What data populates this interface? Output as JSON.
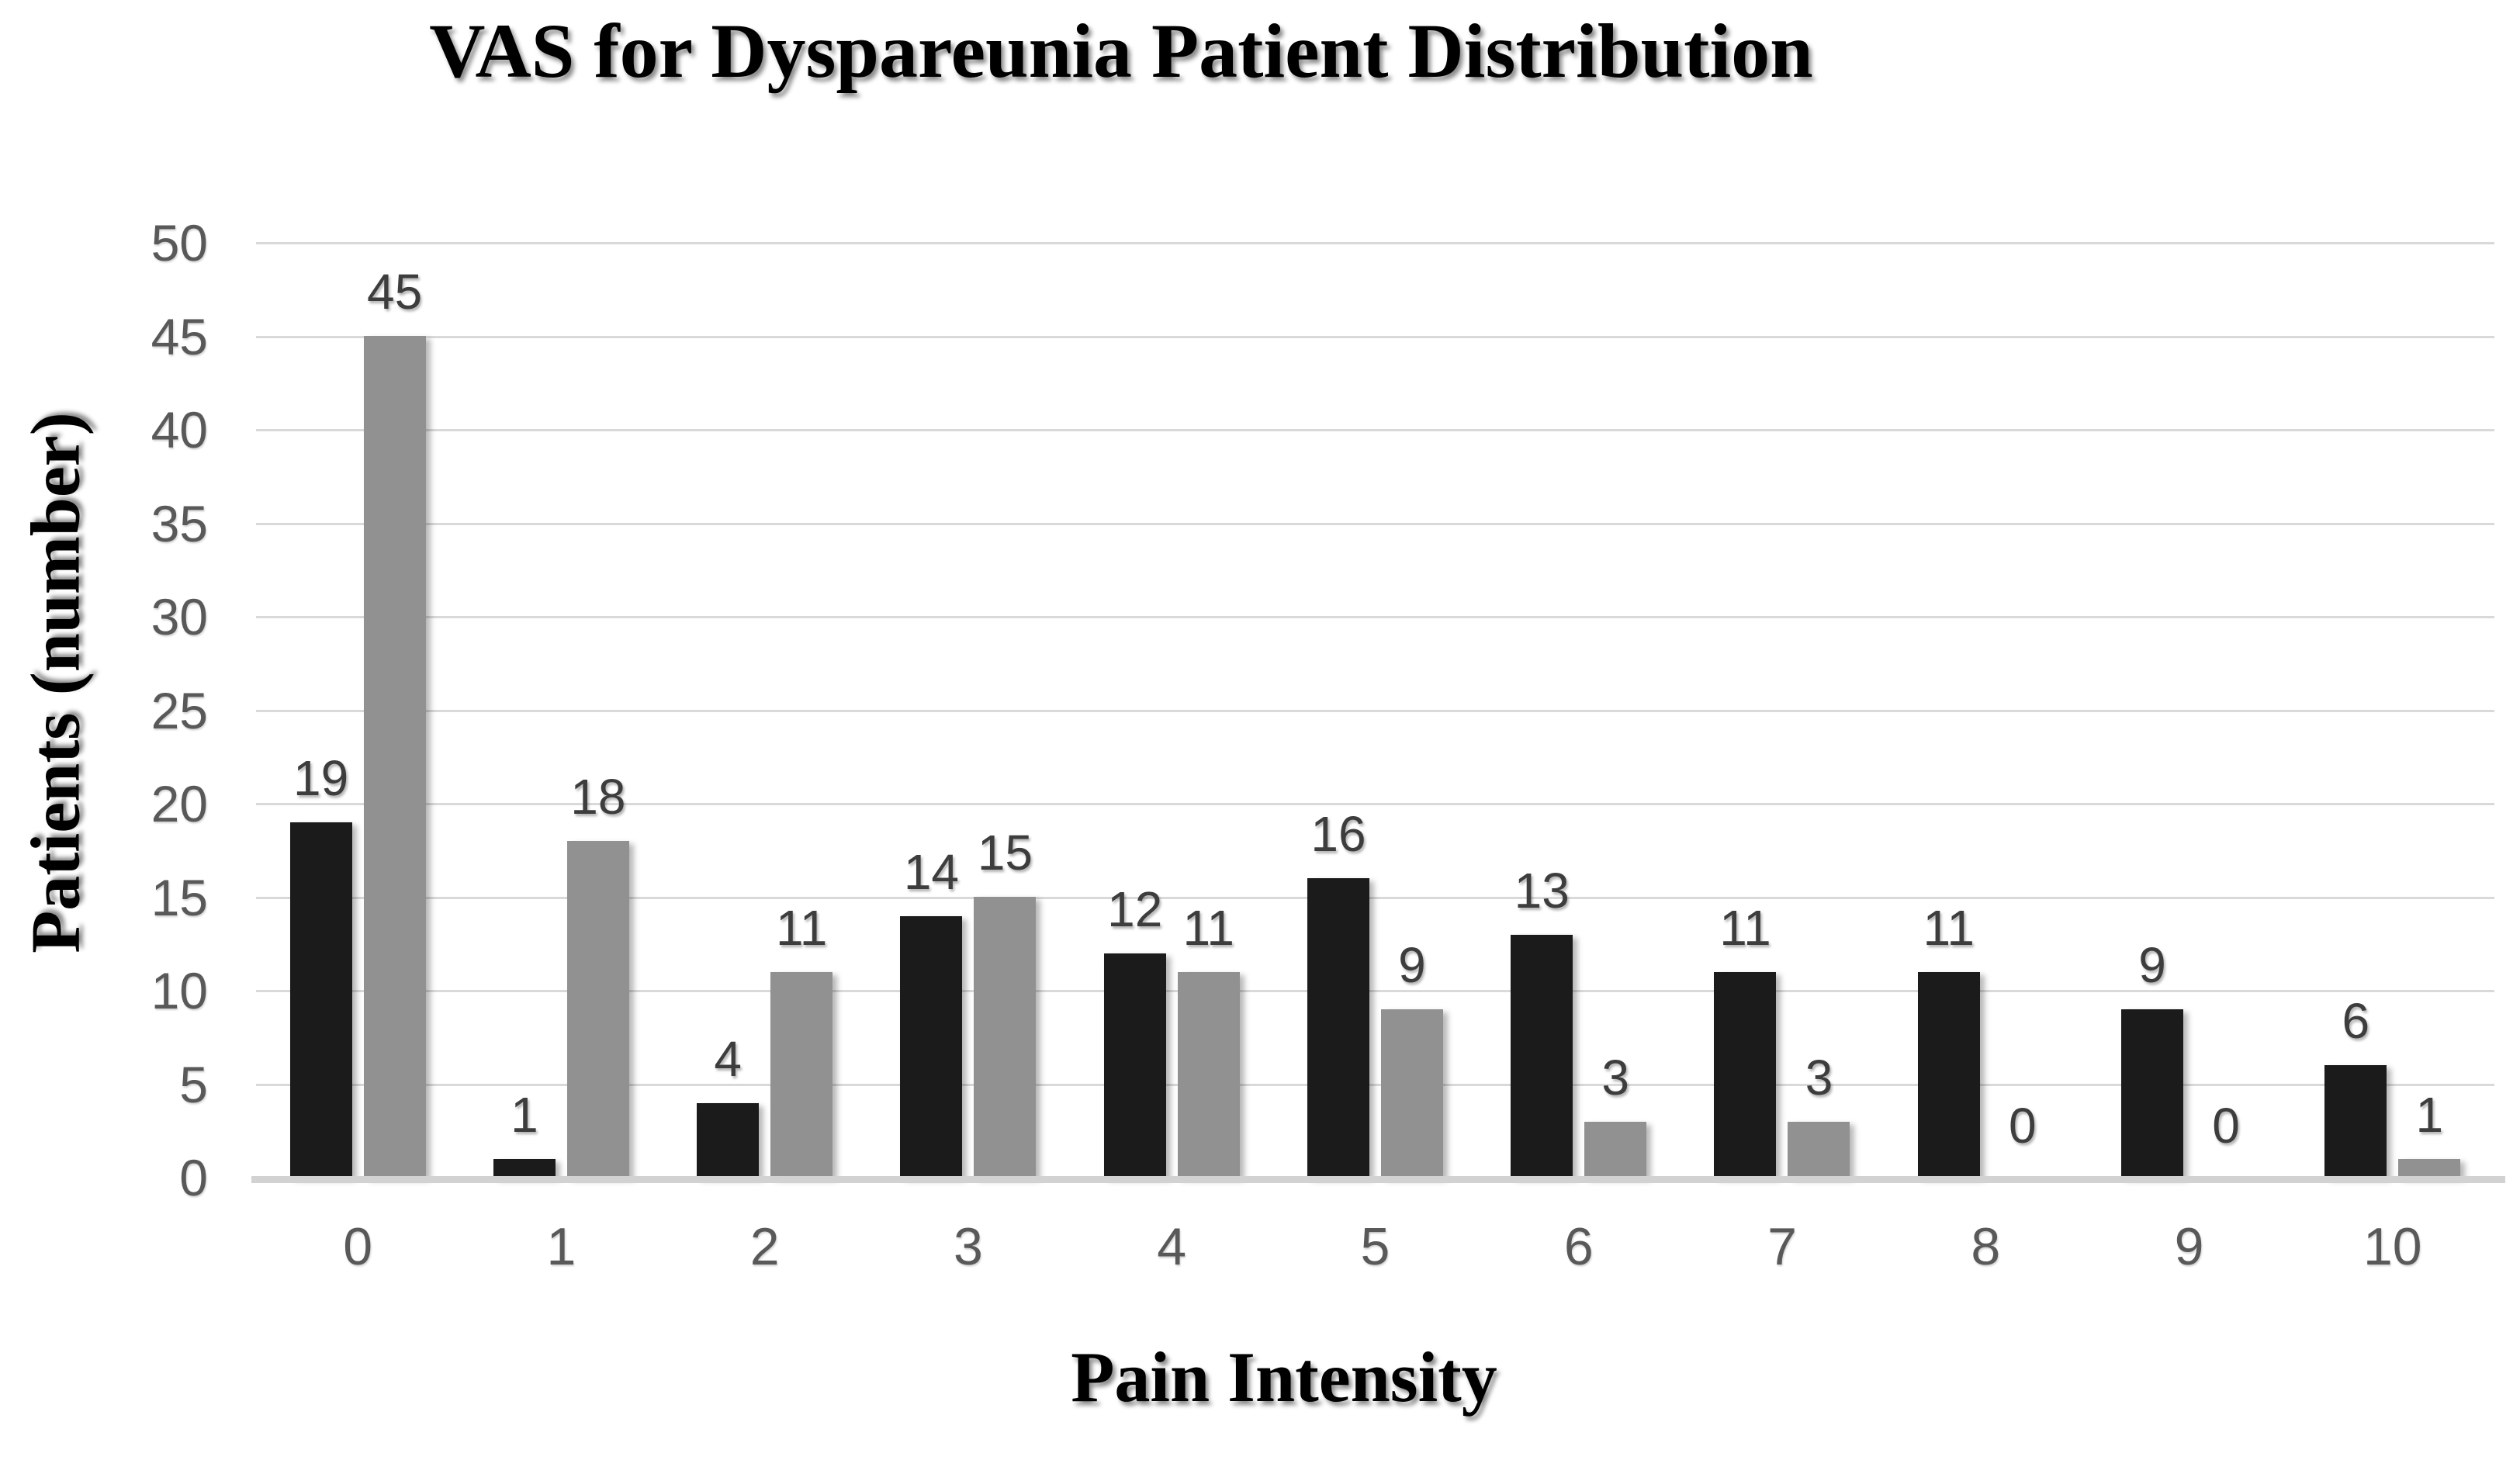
{
  "chart_data": {
    "type": "bar",
    "title": "VAS for Dyspareunia Patient Distribution",
    "xlabel": "Pain Intensity",
    "ylabel": "Patients (number)",
    "categories": [
      "0",
      "1",
      "2",
      "3",
      "4",
      "5",
      "6",
      "7",
      "8",
      "9",
      "10"
    ],
    "series": [
      {
        "name": "black-series",
        "color": "#1b1b1b",
        "values": [
          19,
          1,
          4,
          14,
          12,
          16,
          13,
          11,
          11,
          9,
          6
        ]
      },
      {
        "name": "gray-series",
        "color": "#919191",
        "values": [
          45,
          18,
          11,
          15,
          11,
          9,
          3,
          3,
          0,
          0,
          1
        ]
      }
    ],
    "data_labels": [
      [
        "19",
        "1",
        "4",
        "14",
        "12",
        "16",
        "13",
        "11",
        "11",
        "9",
        "6"
      ],
      [
        "45",
        "18",
        "11",
        "15",
        "11",
        "9",
        "3",
        "3",
        "0",
        "0",
        "1"
      ]
    ],
    "y_ticks": [
      "50",
      "45",
      "40",
      "35",
      "30",
      "25",
      "20",
      "15",
      "10",
      "5",
      "0"
    ],
    "ylim": [
      0,
      50
    ],
    "grid": "horizontal",
    "legend_position": "none"
  },
  "colors": {
    "background": "#ffffff",
    "gridline": "#d9d9d9",
    "axis_line": "#d2d2d2",
    "tick_label": "#595959",
    "data_label": "#3d3d3d",
    "title_text": "#000000"
  }
}
